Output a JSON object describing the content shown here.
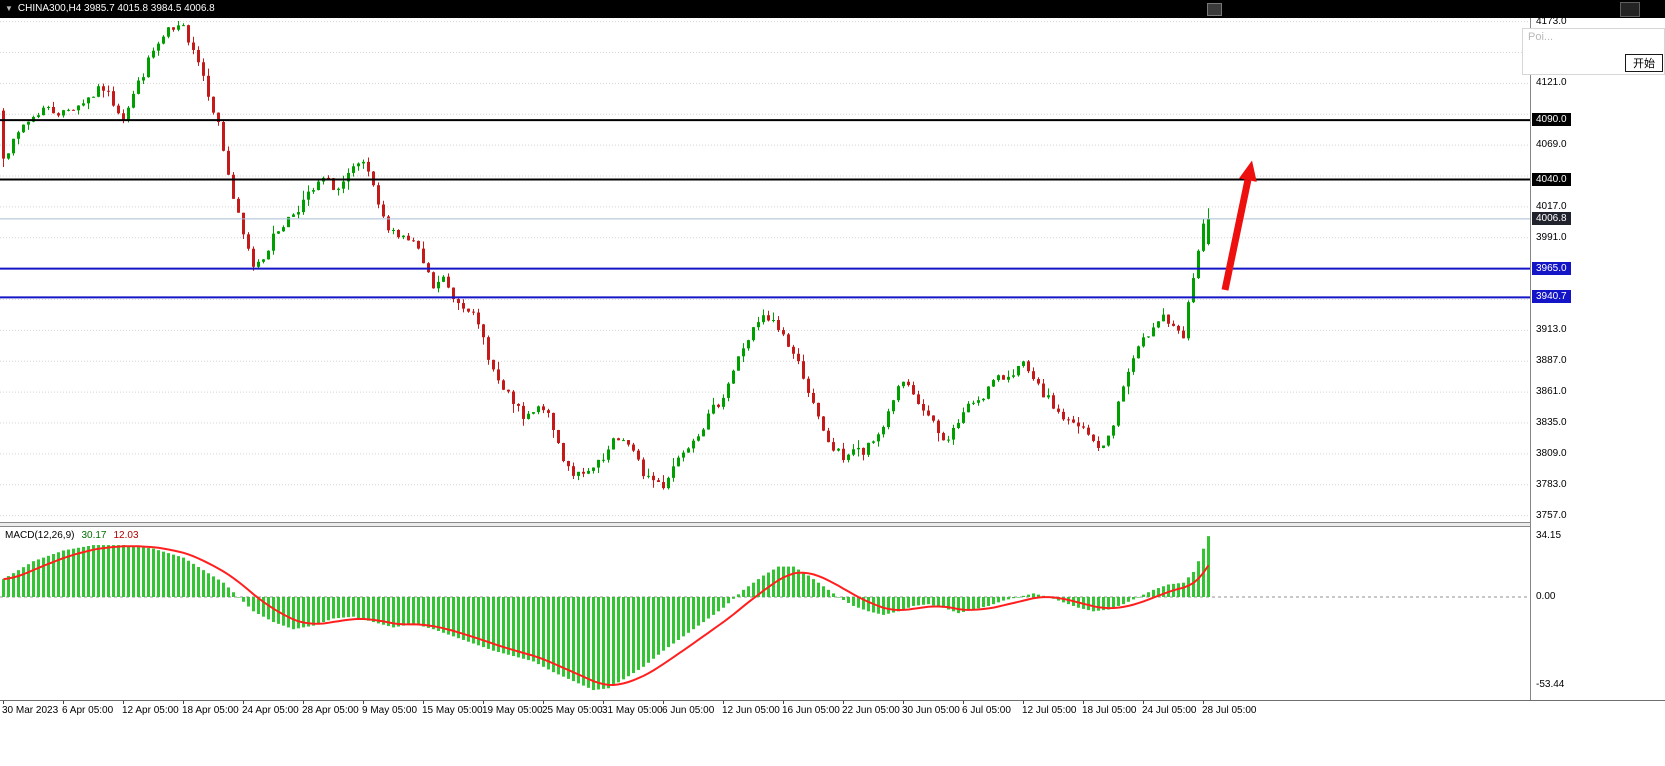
{
  "titlebar": {
    "collapse_icon": "▼",
    "symbol_title": "CHINA300,H4 3985.7 4015.8 3984.5 4006.8"
  },
  "overlay": {
    "truncated_text": "Poi...",
    "start_button": "开始"
  },
  "macd": {
    "label": "MACD(12,26,9)",
    "main_value": "30.17",
    "signal_value": "12.03",
    "scale_max": "34.15",
    "scale_zero": "0.00",
    "scale_min": "-53.44"
  },
  "price_axis": {
    "min": 3757,
    "max": 4173,
    "step": 26,
    "decimals": 1,
    "badges": [
      {
        "text": "4090.0",
        "price": 4090,
        "type": "black"
      },
      {
        "text": "4040.0",
        "price": 4040,
        "type": "black"
      },
      {
        "text": "4006.8",
        "price": 4006.8,
        "type": "current"
      },
      {
        "text": "3965.0",
        "price": 3965,
        "type": "blue"
      },
      {
        "text": "3940.7",
        "price": 3940.7,
        "type": "blue"
      }
    ]
  },
  "chart_data": {
    "type": "candlestick",
    "symbol": "CHINA300",
    "timeframe": "H4",
    "last_bar_ohlc": {
      "open": 3985.7,
      "high": 4015.8,
      "low": 3984.5,
      "close": 4006.8
    },
    "ylim": [
      3751,
      4176
    ],
    "x_labels": [
      "30 Mar 2023",
      "6 Apr 05:00",
      "12 Apr 05:00",
      "18 Apr 05:00",
      "24 Apr 05:00",
      "28 Apr 05:00",
      "9 May 05:00",
      "15 May 05:00",
      "19 May 05:00",
      "25 May 05:00",
      "31 May 05:00",
      "6 Jun 05:00",
      "12 Jun 05:00",
      "16 Jun 05:00",
      "22 Jun 05:00",
      "30 Jun 05:00",
      "6 Jul 05:00",
      "12 Jul 05:00",
      "18 Jul 05:00",
      "24 Jul 05:00",
      "28 Jul 05:00"
    ],
    "bars_per_label": 12,
    "bar_count": 242,
    "first_open": 4098,
    "price_anchors": [
      [
        0,
        4062
      ],
      [
        2,
        4070
      ],
      [
        4,
        4086
      ],
      [
        8,
        4100
      ],
      [
        12,
        4096
      ],
      [
        16,
        4106
      ],
      [
        20,
        4117
      ],
      [
        24,
        4093
      ],
      [
        27,
        4121
      ],
      [
        30,
        4148
      ],
      [
        33,
        4164
      ],
      [
        36,
        4167
      ],
      [
        38,
        4152
      ],
      [
        40,
        4128
      ],
      [
        43,
        4086
      ],
      [
        46,
        4024
      ],
      [
        48,
        3992
      ],
      [
        50,
        3968
      ],
      [
        52,
        3976
      ],
      [
        55,
        3998
      ],
      [
        58,
        4012
      ],
      [
        61,
        4026
      ],
      [
        64,
        4040
      ],
      [
        67,
        4032
      ],
      [
        70,
        4047
      ],
      [
        72,
        4054
      ],
      [
        74,
        4031
      ],
      [
        76,
        4006
      ],
      [
        79,
        3993
      ],
      [
        82,
        3986
      ],
      [
        84,
        3969
      ],
      [
        86,
        3949
      ],
      [
        88,
        3956
      ],
      [
        90,
        3941
      ],
      [
        93,
        3933
      ],
      [
        96,
        3906
      ],
      [
        98,
        3879
      ],
      [
        100,
        3861
      ],
      [
        102,
        3853
      ],
      [
        104,
        3837
      ],
      [
        106,
        3843
      ],
      [
        108,
        3849
      ],
      [
        110,
        3829
      ],
      [
        112,
        3806
      ],
      [
        114,
        3793
      ],
      [
        116,
        3789
      ],
      [
        118,
        3796
      ],
      [
        120,
        3803
      ],
      [
        122,
        3818
      ],
      [
        124,
        3823
      ],
      [
        126,
        3809
      ],
      [
        128,
        3793
      ],
      [
        130,
        3787
      ],
      [
        132,
        3783
      ],
      [
        134,
        3799
      ],
      [
        136,
        3813
      ],
      [
        138,
        3823
      ],
      [
        140,
        3833
      ],
      [
        142,
        3846
      ],
      [
        144,
        3859
      ],
      [
        146,
        3879
      ],
      [
        148,
        3899
      ],
      [
        150,
        3913
      ],
      [
        152,
        3923
      ],
      [
        154,
        3919
      ],
      [
        156,
        3909
      ],
      [
        158,
        3893
      ],
      [
        160,
        3876
      ],
      [
        162,
        3849
      ],
      [
        164,
        3826
      ],
      [
        166,
        3813
      ],
      [
        168,
        3806
      ],
      [
        170,
        3813
      ],
      [
        172,
        3809
      ],
      [
        174,
        3819
      ],
      [
        176,
        3833
      ],
      [
        178,
        3856
      ],
      [
        180,
        3869
      ],
      [
        182,
        3856
      ],
      [
        184,
        3846
      ],
      [
        186,
        3833
      ],
      [
        188,
        3819
      ],
      [
        190,
        3829
      ],
      [
        192,
        3843
      ],
      [
        194,
        3853
      ],
      [
        196,
        3859
      ],
      [
        198,
        3869
      ],
      [
        200,
        3873
      ],
      [
        202,
        3879
      ],
      [
        204,
        3883
      ],
      [
        206,
        3869
      ],
      [
        208,
        3859
      ],
      [
        210,
        3849
      ],
      [
        212,
        3839
      ],
      [
        214,
        3833
      ],
      [
        216,
        3829
      ],
      [
        218,
        3819
      ],
      [
        220,
        3813
      ],
      [
        222,
        3836
      ],
      [
        224,
        3866
      ],
      [
        226,
        3889
      ],
      [
        228,
        3903
      ],
      [
        230,
        3919
      ],
      [
        232,
        3926
      ],
      [
        234,
        3913
      ],
      [
        236,
        3906
      ],
      [
        237,
        3933
      ],
      [
        238,
        3959
      ],
      [
        239,
        3980
      ],
      [
        240,
        3999
      ],
      [
        241,
        4006.8
      ]
    ],
    "hlines": [
      {
        "price": 4090,
        "color": "#000000",
        "width": 2
      },
      {
        "price": 4040,
        "color": "#000000",
        "width": 2
      },
      {
        "price": 3965,
        "color": "#1515c8",
        "width": 2
      },
      {
        "price": 3940.7,
        "color": "#1515c8",
        "width": 2
      },
      {
        "price": 4006.8,
        "color": "#a8bed8",
        "width": 1
      }
    ],
    "arrow": {
      "from": {
        "bar": 244.3,
        "price": 3947
      },
      "to": {
        "bar": 249.7,
        "price": 4056
      },
      "color": "#ee0f0f"
    },
    "macd_chart": {
      "type": "macd-histogram",
      "ylim": [
        -53.44,
        34.15
      ],
      "signal_ema_period": 9,
      "anchors": [
        [
          0,
          10
        ],
        [
          6,
          20
        ],
        [
          12,
          26
        ],
        [
          18,
          29
        ],
        [
          24,
          29
        ],
        [
          30,
          27
        ],
        [
          36,
          22
        ],
        [
          40,
          15
        ],
        [
          44,
          8
        ],
        [
          47,
          0
        ],
        [
          50,
          -8
        ],
        [
          54,
          -14
        ],
        [
          58,
          -18
        ],
        [
          62,
          -16
        ],
        [
          66,
          -12
        ],
        [
          70,
          -11
        ],
        [
          74,
          -14
        ],
        [
          78,
          -17
        ],
        [
          82,
          -15
        ],
        [
          86,
          -18
        ],
        [
          90,
          -22
        ],
        [
          94,
          -26
        ],
        [
          98,
          -30
        ],
        [
          102,
          -33
        ],
        [
          106,
          -36
        ],
        [
          110,
          -42
        ],
        [
          114,
          -47
        ],
        [
          118,
          -52
        ],
        [
          121,
          -51
        ],
        [
          124,
          -46
        ],
        [
          128,
          -39
        ],
        [
          132,
          -30
        ],
        [
          136,
          -22
        ],
        [
          140,
          -14
        ],
        [
          144,
          -6
        ],
        [
          148,
          4
        ],
        [
          152,
          12
        ],
        [
          155,
          17
        ],
        [
          158,
          17
        ],
        [
          161,
          12
        ],
        [
          164,
          6
        ],
        [
          167,
          0
        ],
        [
          170,
          -5
        ],
        [
          173,
          -8
        ],
        [
          176,
          -10
        ],
        [
          179,
          -8
        ],
        [
          182,
          -5
        ],
        [
          185,
          -4
        ],
        [
          188,
          -6
        ],
        [
          191,
          -9
        ],
        [
          194,
          -7
        ],
        [
          197,
          -5
        ],
        [
          200,
          -2
        ],
        [
          203,
          0
        ],
        [
          206,
          2
        ],
        [
          209,
          0
        ],
        [
          212,
          -3
        ],
        [
          215,
          -6
        ],
        [
          218,
          -8
        ],
        [
          221,
          -7
        ],
        [
          224,
          -4
        ],
        [
          227,
          0
        ],
        [
          230,
          4
        ],
        [
          233,
          7
        ],
        [
          236,
          8
        ],
        [
          238,
          14
        ],
        [
          239,
          20
        ],
        [
          240,
          27
        ],
        [
          241,
          34
        ]
      ]
    }
  },
  "colors": {
    "up": "#009f00",
    "down": "#c41a1a",
    "hist": "#33c433",
    "signal": "#ff1f1f",
    "grid": "#d4d4d4",
    "zero_line": "#909090"
  },
  "render": {
    "seed": 7,
    "noise": 9,
    "wick": 8
  }
}
